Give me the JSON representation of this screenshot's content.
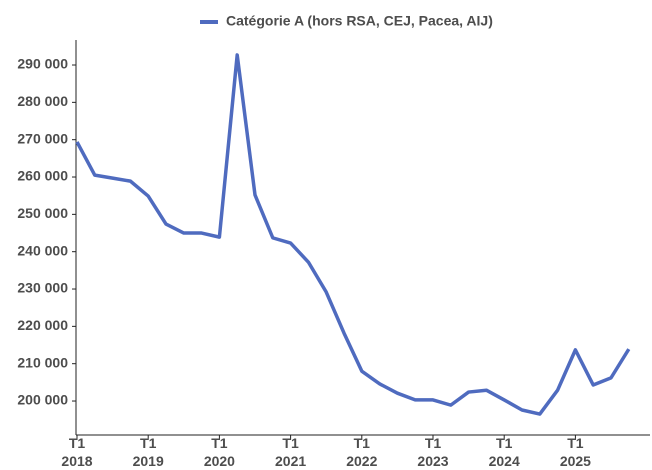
{
  "chart_data": {
    "type": "line",
    "categories": [
      "T1 2018",
      null,
      null,
      null,
      "T1 2019",
      null,
      null,
      null,
      "T1 2020",
      null,
      null,
      null,
      "T1 2021",
      null,
      null,
      null,
      "T1 2022",
      null,
      null,
      null,
      "T1 2023",
      null,
      null,
      null,
      "T1 2024",
      null,
      null,
      null,
      "T1 2025",
      null,
      null,
      null
    ],
    "series": [
      {
        "name": "Catégorie A (hors RSA, CEJ, Pacea, AIJ)",
        "color": "#4f6bbf",
        "values": [
          269400,
          260500,
          259700,
          258900,
          254900,
          247400,
          245000,
          245000,
          243900,
          292700,
          255200,
          243700,
          242300,
          237200,
          229200,
          218200,
          208000,
          204600,
          202100,
          200300,
          200300,
          198900,
          202400,
          202900,
          200300,
          197600,
          196500,
          202900,
          213700,
          204300,
          206200,
          213900
        ]
      }
    ],
    "ylim": [
      190900,
      296700
    ],
    "yticks": [
      {
        "value": 200000,
        "label": "200 000"
      },
      {
        "value": 210000,
        "label": "210 000"
      },
      {
        "value": 220000,
        "label": "220 000"
      },
      {
        "value": 230000,
        "label": "230 000"
      },
      {
        "value": 240000,
        "label": "240 000"
      },
      {
        "value": 250000,
        "label": "250 000"
      },
      {
        "value": 260000,
        "label": "260 000"
      },
      {
        "value": 270000,
        "label": "270 000"
      },
      {
        "value": 280000,
        "label": "280 000"
      },
      {
        "value": 290000,
        "label": "290 000"
      }
    ],
    "legend": "top",
    "grid": false
  }
}
